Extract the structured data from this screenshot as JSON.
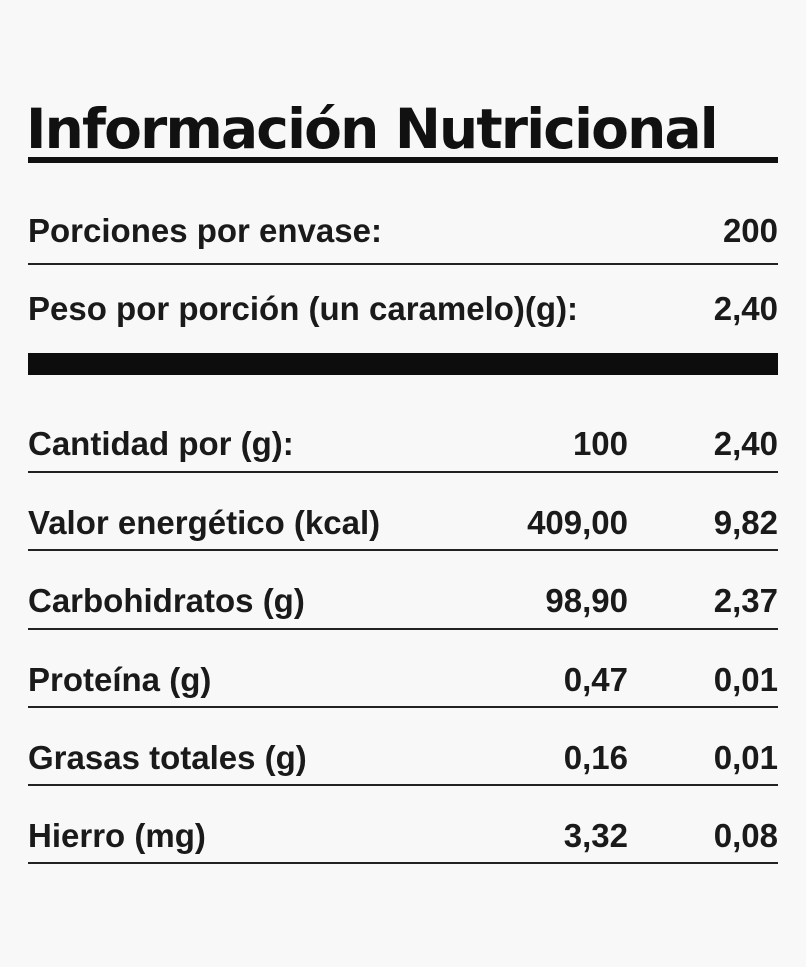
{
  "title": "Información Nutricional",
  "serving_info": [
    {
      "label": "Porciones por envase:",
      "value": "200"
    },
    {
      "label": "Peso por porción (un caramelo)(g):",
      "value": "2,40"
    }
  ],
  "table": {
    "header": {
      "label": "Cantidad por (g):",
      "per_100": "100",
      "per_portion": "2,40"
    },
    "rows": [
      {
        "label": "Valor energético (kcal)",
        "per_100": "409,00",
        "per_portion": "9,82"
      },
      {
        "label": "Carbohidratos (g)",
        "per_100": "98,90",
        "per_portion": "2,37"
      },
      {
        "label": "Proteína (g)",
        "per_100": "0,47",
        "per_portion": "0,01"
      },
      {
        "label": "Grasas totales (g)",
        "per_100": "0,16",
        "per_portion": "0,01"
      },
      {
        "label": "Hierro (mg)",
        "per_100": "3,32",
        "per_portion": "0,08"
      }
    ]
  },
  "colors": {
    "background": "#f8f8f8",
    "text": "#1a1a1a",
    "rule": "#111111"
  }
}
